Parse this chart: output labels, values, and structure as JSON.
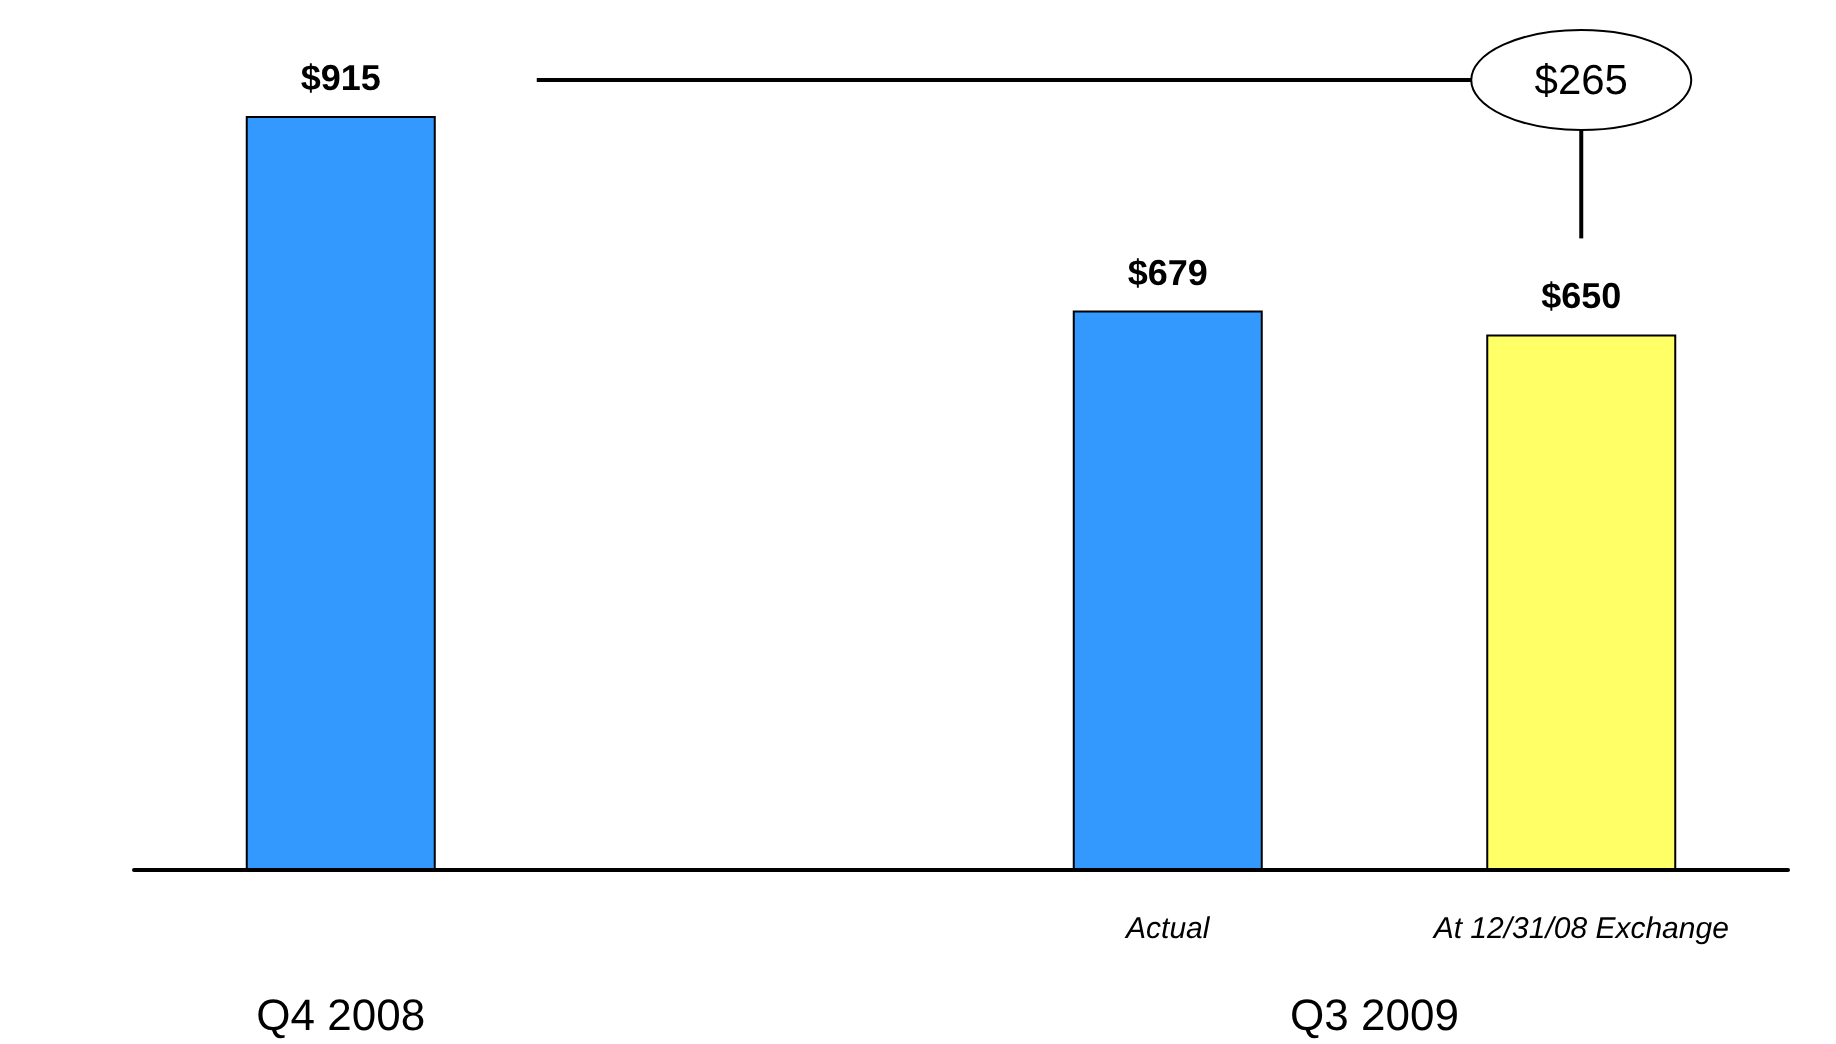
{
  "chart_data": {
    "type": "bar",
    "categories": [
      null,
      null,
      "Actual",
      "At 12/31/08 Exchange"
    ],
    "values": [
      915,
      null,
      679,
      650
    ],
    "colors": [
      "#3399ff",
      null,
      "#3399ff",
      "#ffff66"
    ],
    "value_labels": [
      "$915",
      null,
      "$679",
      "$650"
    ],
    "annotations": [
      "$265",
      "Q4 2008",
      "Q3 2009"
    ]
  }
}
